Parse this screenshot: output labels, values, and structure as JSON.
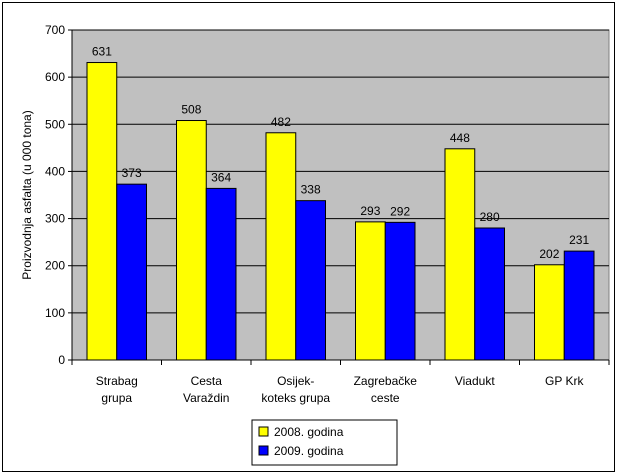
{
  "chart_data": {
    "type": "bar",
    "categories": [
      [
        "Strabag",
        "grupa"
      ],
      [
        "Cesta",
        "Varaždin"
      ],
      [
        "Osijek-",
        "koteks grupa"
      ],
      [
        "Zagrebačke",
        "ceste"
      ],
      [
        "Viadukt"
      ],
      [
        "GP Krk"
      ]
    ],
    "series": [
      {
        "name": "2008. godina",
        "values": [
          631,
          508,
          482,
          293,
          448,
          202
        ],
        "color": "#ffff00"
      },
      {
        "name": "2009. godina",
        "values": [
          373,
          364,
          338,
          292,
          280,
          231
        ],
        "color": "#0000ff"
      }
    ],
    "title": "",
    "xlabel": "",
    "ylabel": "Proizvodnja asfalta  (u 000 tona)",
    "ylim": [
      0,
      700
    ],
    "yticks": [
      0,
      100,
      200,
      300,
      400,
      500,
      600,
      700
    ],
    "plot_background": "#c0c0c0",
    "grid": true,
    "legend_position": "bottom"
  }
}
